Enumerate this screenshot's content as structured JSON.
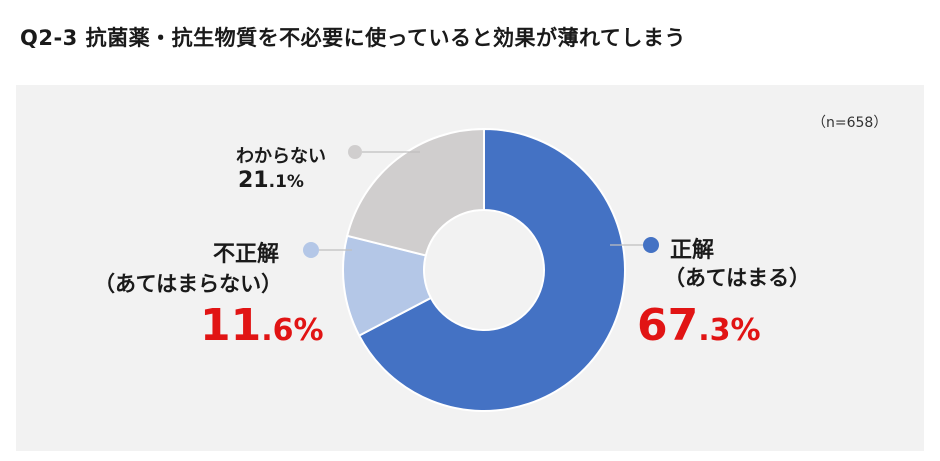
{
  "title": "Q2-3 抗菌薬・抗生物質を不必要に使っていると効果が薄れてしまう",
  "sample_note": "（n=658）",
  "colors": {
    "seikai": "#4472c4",
    "fusei": "#b4c7e7",
    "wakaranai": "#d0cece",
    "highlight": "#e11414",
    "panel": "#f2f2f2"
  },
  "labels": {
    "wakaranai": {
      "name": "わからない",
      "pct_int": "21",
      "pct_dec": ".1",
      "pct_sign": "%"
    },
    "fusei": {
      "name": "不正解",
      "sub": "（あてはまらない）",
      "pct_int": "11",
      "pct_dec": ".6",
      "pct_sign": "%"
    },
    "seikai": {
      "name": "正解",
      "sub": "（あてはまる）",
      "pct_int": "67",
      "pct_dec": ".3",
      "pct_sign": "%"
    }
  },
  "chart_data": {
    "type": "pie",
    "style": "donut",
    "title": "Q2-3 抗菌薬・抗生物質を不必要に使っていると効果が薄れてしまう",
    "categories": [
      "正解（あてはまる）",
      "不正解（あてはまらない）",
      "わからない"
    ],
    "values": [
      67.3,
      11.6,
      21.1
    ],
    "unit": "%",
    "n": 658
  }
}
